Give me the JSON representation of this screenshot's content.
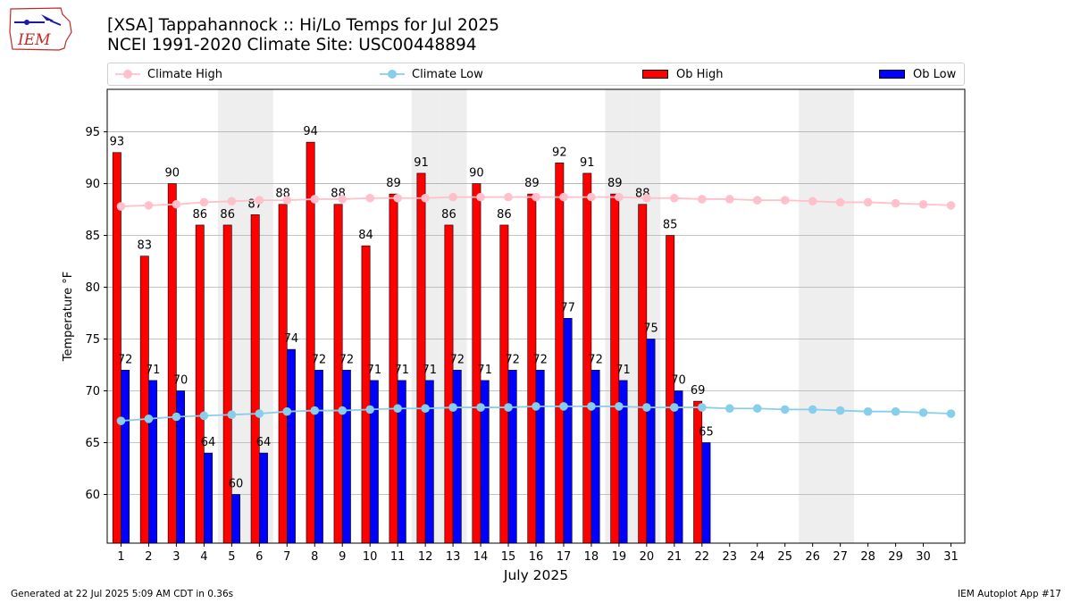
{
  "header": {
    "title_line1": "[XSA] Tappahannock :: Hi/Lo Temps for Jul 2025",
    "title_line2": "NCEI 1991-2020 Climate Site: USC00448894"
  },
  "logo": {
    "text": "IEM"
  },
  "legend": {
    "climate_high": "Climate High",
    "climate_low": "Climate Low",
    "ob_high": "Ob High",
    "ob_low": "Ob Low"
  },
  "footer": {
    "left": "Generated at 22 Jul 2025 5:09 AM CDT in 0.36s",
    "right": "IEM Autoplot App #17"
  },
  "colors": {
    "ob_high": "#ff0000",
    "ob_low": "#0000ff",
    "climate_high": "#ffc0cb",
    "climate_low": "#87ceeb",
    "weekend_shade": "#eeeeee",
    "grid": "#b0b0b0"
  },
  "chart_data": {
    "type": "bar",
    "xlabel": "July 2025",
    "ylabel": "Temperature °F",
    "ylim": [
      55.3,
      99.1
    ],
    "yticks": [
      60,
      65,
      70,
      75,
      80,
      85,
      90,
      95
    ],
    "days": [
      1,
      2,
      3,
      4,
      5,
      6,
      7,
      8,
      9,
      10,
      11,
      12,
      13,
      14,
      15,
      16,
      17,
      18,
      19,
      20,
      21,
      22,
      23,
      24,
      25,
      26,
      27,
      28,
      29,
      30,
      31
    ],
    "weekend_days": [
      5,
      6,
      12,
      13,
      19,
      20,
      26,
      27
    ],
    "grid": true,
    "legend_position": "top",
    "series": [
      {
        "name": "Ob High",
        "kind": "bar",
        "values": [
          93,
          83,
          90,
          86,
          86,
          87,
          88,
          94,
          88,
          84,
          89,
          91,
          86,
          90,
          86,
          89,
          92,
          91,
          89,
          88,
          85,
          69
        ]
      },
      {
        "name": "Ob Low",
        "kind": "bar",
        "values": [
          72,
          71,
          70,
          64,
          60,
          64,
          74,
          72,
          72,
          71,
          71,
          71,
          72,
          71,
          72,
          72,
          77,
          72,
          71,
          75,
          70,
          65
        ]
      },
      {
        "name": "Climate High",
        "kind": "line",
        "values": [
          87.8,
          87.9,
          88.0,
          88.2,
          88.3,
          88.4,
          88.4,
          88.5,
          88.5,
          88.6,
          88.6,
          88.6,
          88.7,
          88.7,
          88.7,
          88.7,
          88.7,
          88.7,
          88.7,
          88.6,
          88.6,
          88.5,
          88.5,
          88.4,
          88.4,
          88.3,
          88.2,
          88.2,
          88.1,
          88.0,
          87.9
        ]
      },
      {
        "name": "Climate Low",
        "kind": "line",
        "values": [
          67.1,
          67.3,
          67.5,
          67.6,
          67.7,
          67.8,
          68.0,
          68.1,
          68.1,
          68.2,
          68.3,
          68.3,
          68.4,
          68.4,
          68.4,
          68.5,
          68.5,
          68.5,
          68.5,
          68.4,
          68.4,
          68.4,
          68.3,
          68.3,
          68.2,
          68.2,
          68.1,
          68.0,
          68.0,
          67.9,
          67.8
        ]
      }
    ]
  }
}
